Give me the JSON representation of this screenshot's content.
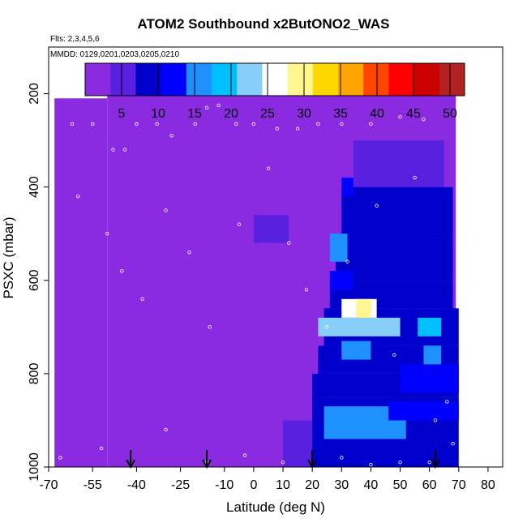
{
  "chart_data": {
    "type": "heatmap",
    "title": "ATOM2 Southbound x2ButONO2_WAS",
    "subtitle": "Flts: 2,3,4,5,6",
    "annotation": "MMDD: 0129,0201,0203,0205,0210",
    "xlabel": "Latitude (deg N)",
    "ylabel": "PSXC (mbar)",
    "xlim": [
      -70,
      85
    ],
    "ylim": [
      1000,
      100
    ],
    "y_reversed": true,
    "x_ticks": [
      -70,
      -55,
      -40,
      -25,
      -10,
      0,
      10,
      20,
      30,
      40,
      50,
      60,
      70,
      80
    ],
    "y_ticks": [
      200,
      400,
      600,
      800,
      1000
    ],
    "colorbar": {
      "min": 0,
      "max": 52,
      "ticks": [
        5,
        10,
        15,
        20,
        25,
        30,
        35,
        40,
        45,
        50
      ],
      "colors": [
        "#8a2be2",
        "#5a20e0",
        "#0000cd",
        "#0000ff",
        "#1e90ff",
        "#00bfff",
        "#87cefa",
        "#ffffff",
        "#fff68f",
        "#ffd700",
        "#ffa500",
        "#ff4500",
        "#ff0000",
        "#cd0000",
        "#b22222"
      ]
    },
    "arrows_lat": [
      -42,
      -16,
      20,
      62
    ],
    "background_value": 1,
    "regions": [
      {
        "lat": [
          20,
          70
        ],
        "p": [
          850,
          1000
        ],
        "value": 9
      },
      {
        "lat": [
          20,
          70
        ],
        "p": [
          800,
          850
        ],
        "value": 8
      },
      {
        "lat": [
          22,
          70
        ],
        "p": [
          740,
          800
        ],
        "value": 8
      },
      {
        "lat": [
          24,
          70
        ],
        "p": [
          660,
          740
        ],
        "value": 9
      },
      {
        "lat": [
          26,
          68
        ],
        "p": [
          600,
          660
        ],
        "value": 8
      },
      {
        "lat": [
          28,
          68
        ],
        "p": [
          500,
          600
        ],
        "value": 7
      },
      {
        "lat": [
          30,
          68
        ],
        "p": [
          400,
          500
        ],
        "value": 7
      },
      {
        "lat": [
          34,
          65
        ],
        "p": [
          300,
          400
        ],
        "value": 6
      },
      {
        "lat": [
          10,
          20
        ],
        "p": [
          900,
          1000
        ],
        "value": 4
      },
      {
        "lat": [
          0,
          12
        ],
        "p": [
          460,
          520
        ],
        "value": 4
      },
      {
        "lat": [
          24,
          52
        ],
        "p": [
          870,
          940
        ],
        "value": 14
      },
      {
        "lat": [
          46,
          70
        ],
        "p": [
          860,
          900
        ],
        "value": 13
      },
      {
        "lat": [
          50,
          70
        ],
        "p": [
          780,
          840
        ],
        "value": 12
      },
      {
        "lat": [
          22,
          50
        ],
        "p": [
          680,
          720
        ],
        "value": 22
      },
      {
        "lat": [
          30,
          42
        ],
        "p": [
          640,
          680
        ],
        "value": 26
      },
      {
        "lat": [
          35,
          40
        ],
        "p": [
          640,
          680
        ],
        "value": 30
      },
      {
        "lat": [
          56,
          64
        ],
        "p": [
          680,
          720
        ],
        "value": 20
      },
      {
        "lat": [
          26,
          32
        ],
        "p": [
          500,
          560
        ],
        "value": 15
      },
      {
        "lat": [
          26,
          34
        ],
        "p": [
          580,
          620
        ],
        "value": 12
      },
      {
        "lat": [
          30,
          34
        ],
        "p": [
          380,
          420
        ],
        "value": 13
      },
      {
        "lat": [
          30,
          40
        ],
        "p": [
          730,
          770
        ],
        "value": 16
      },
      {
        "lat": [
          58,
          64
        ],
        "p": [
          740,
          780
        ],
        "value": 14
      }
    ],
    "samples": [
      {
        "lat": -62,
        "p": 265
      },
      {
        "lat": -55,
        "p": 265
      },
      {
        "lat": -48,
        "p": 320
      },
      {
        "lat": -44,
        "p": 320
      },
      {
        "lat": -40,
        "p": 265
      },
      {
        "lat": -33,
        "p": 265
      },
      {
        "lat": -28,
        "p": 290
      },
      {
        "lat": -20,
        "p": 265
      },
      {
        "lat": -16,
        "p": 230
      },
      {
        "lat": -12,
        "p": 225
      },
      {
        "lat": -6,
        "p": 265
      },
      {
        "lat": 0,
        "p": 265
      },
      {
        "lat": 8,
        "p": 275
      },
      {
        "lat": 15,
        "p": 275
      },
      {
        "lat": 22,
        "p": 265
      },
      {
        "lat": 30,
        "p": 265
      },
      {
        "lat": 40,
        "p": 265
      },
      {
        "lat": 50,
        "p": 250
      },
      {
        "lat": 58,
        "p": 255
      },
      {
        "lat": -60,
        "p": 420
      },
      {
        "lat": -50,
        "p": 500
      },
      {
        "lat": -45,
        "p": 580
      },
      {
        "lat": -38,
        "p": 640
      },
      {
        "lat": -30,
        "p": 450
      },
      {
        "lat": -22,
        "p": 540
      },
      {
        "lat": -15,
        "p": 700
      },
      {
        "lat": -5,
        "p": 480
      },
      {
        "lat": 5,
        "p": 360
      },
      {
        "lat": 12,
        "p": 520
      },
      {
        "lat": 18,
        "p": 620
      },
      {
        "lat": 25,
        "p": 700
      },
      {
        "lat": 32,
        "p": 560
      },
      {
        "lat": 42,
        "p": 440
      },
      {
        "lat": 48,
        "p": 760
      },
      {
        "lat": 55,
        "p": 380
      },
      {
        "lat": 62,
        "p": 900
      },
      {
        "lat": 66,
        "p": 860
      },
      {
        "lat": -66,
        "p": 980
      },
      {
        "lat": -52,
        "p": 960
      },
      {
        "lat": -42,
        "p": 995
      },
      {
        "lat": -30,
        "p": 920
      },
      {
        "lat": -16,
        "p": 990
      },
      {
        "lat": -3,
        "p": 975
      },
      {
        "lat": 10,
        "p": 990
      },
      {
        "lat": 20,
        "p": 995
      },
      {
        "lat": 30,
        "p": 980
      },
      {
        "lat": 40,
        "p": 995
      },
      {
        "lat": 50,
        "p": 990
      },
      {
        "lat": 60,
        "p": 990
      },
      {
        "lat": 68,
        "p": 950
      }
    ]
  }
}
